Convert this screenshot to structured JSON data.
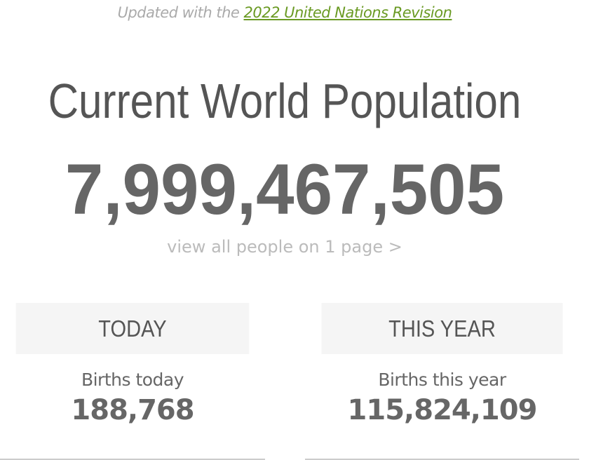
{
  "header": {
    "updated_prefix": "Updated with the ",
    "updated_link": "2022 United Nations Revision",
    "title": "Current World Population",
    "population": "7,999,467,505",
    "view_all_link": "view all people on 1 page >"
  },
  "panels": [
    {
      "heading": "TODAY",
      "label": "Births today",
      "value": "188,768"
    },
    {
      "heading": "THIS YEAR",
      "label": "Births this year",
      "value": "115,824,109"
    }
  ],
  "colors": {
    "link_green": "#6a9a23",
    "text_gray": "#666666",
    "panel_header_bg": "#f5f5f5"
  }
}
